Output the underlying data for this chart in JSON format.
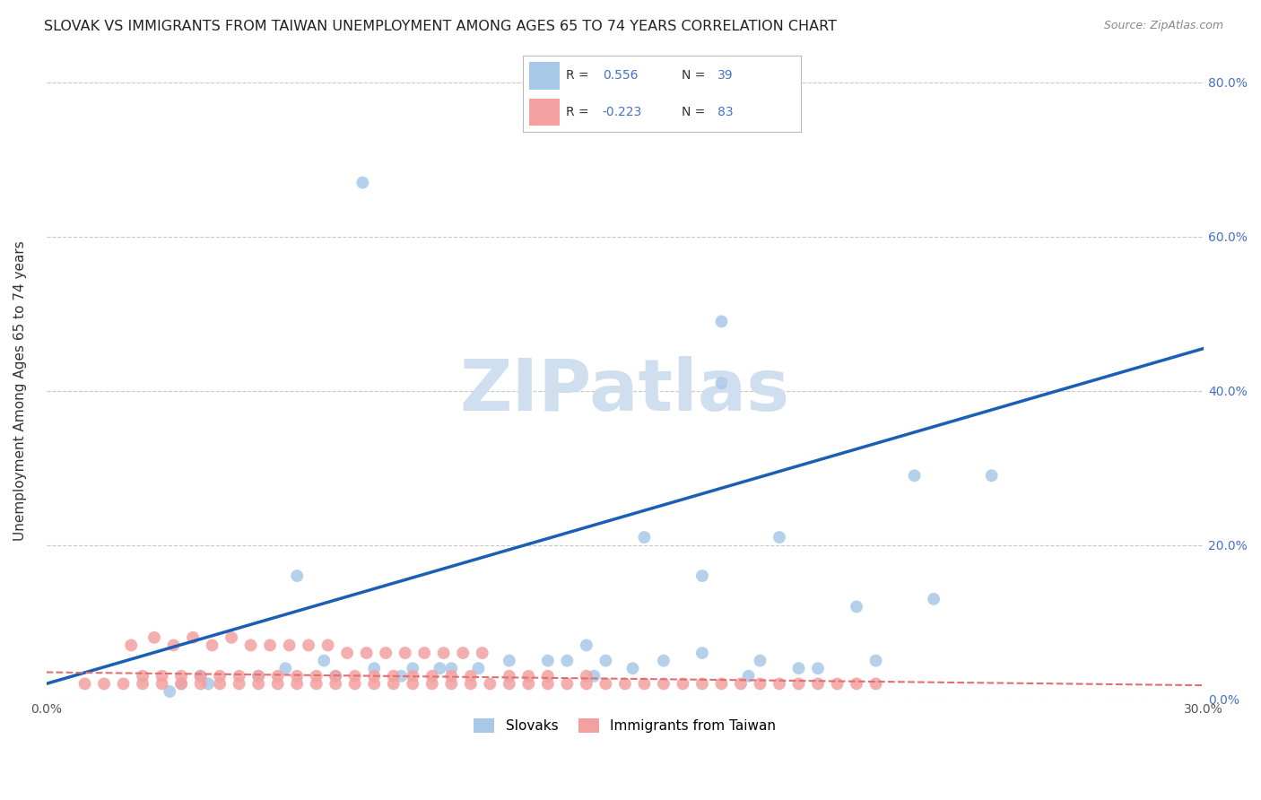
{
  "title": "SLOVAK VS IMMIGRANTS FROM TAIWAN UNEMPLOYMENT AMONG AGES 65 TO 74 YEARS CORRELATION CHART",
  "source": "Source: ZipAtlas.com",
  "ylabel": "Unemployment Among Ages 65 to 74 years",
  "xlim": [
    0.0,
    0.3
  ],
  "ylim": [
    0.0,
    0.8
  ],
  "xticks": [
    0.0,
    0.05,
    0.1,
    0.15,
    0.2,
    0.25,
    0.3
  ],
  "xticklabels": [
    "0.0%",
    "",
    "",
    "",
    "",
    "",
    "30.0%"
  ],
  "yticks": [
    0.0,
    0.2,
    0.4,
    0.6,
    0.8
  ],
  "yticklabels_right": [
    "0.0%",
    "20.0%",
    "40.0%",
    "60.0%",
    "80.0%"
  ],
  "legend_R_blue": "0.556",
  "legend_N_blue": "39",
  "legend_R_pink": "-0.223",
  "legend_N_pink": "83",
  "legend_label_blue": "Slovaks",
  "legend_label_pink": "Immigrants from Taiwan",
  "blue_color": "#a8c8e8",
  "pink_color": "#f4a0a0",
  "blue_line_color": "#1a5fb4",
  "pink_line_color": "#e07070",
  "background_color": "#ffffff",
  "grid_color": "#c8c8c8",
  "watermark_color": "#d0dff0",
  "title_fontsize": 11.5,
  "axis_label_fontsize": 11,
  "tick_fontsize": 10,
  "blue_x": [
    0.082,
    0.175,
    0.175,
    0.245,
    0.155,
    0.19,
    0.21,
    0.23,
    0.17,
    0.065,
    0.04,
    0.055,
    0.075,
    0.085,
    0.095,
    0.105,
    0.12,
    0.13,
    0.135,
    0.145,
    0.16,
    0.17,
    0.185,
    0.195,
    0.2,
    0.215,
    0.14,
    0.062,
    0.072,
    0.102,
    0.112,
    0.152,
    0.182,
    0.225,
    0.142,
    0.092,
    0.032,
    0.035,
    0.042
  ],
  "blue_y": [
    0.67,
    0.49,
    0.41,
    0.29,
    0.21,
    0.21,
    0.12,
    0.13,
    0.16,
    0.16,
    0.03,
    0.03,
    0.03,
    0.04,
    0.04,
    0.04,
    0.05,
    0.05,
    0.05,
    0.05,
    0.05,
    0.06,
    0.05,
    0.04,
    0.04,
    0.05,
    0.07,
    0.04,
    0.05,
    0.04,
    0.04,
    0.04,
    0.03,
    0.29,
    0.03,
    0.03,
    0.01,
    0.02,
    0.02
  ],
  "pink_x": [
    0.01,
    0.015,
    0.02,
    0.025,
    0.025,
    0.03,
    0.03,
    0.035,
    0.035,
    0.04,
    0.04,
    0.045,
    0.045,
    0.05,
    0.05,
    0.055,
    0.055,
    0.06,
    0.06,
    0.065,
    0.065,
    0.07,
    0.07,
    0.075,
    0.075,
    0.08,
    0.08,
    0.085,
    0.085,
    0.09,
    0.09,
    0.095,
    0.095,
    0.1,
    0.1,
    0.105,
    0.105,
    0.11,
    0.11,
    0.115,
    0.12,
    0.12,
    0.125,
    0.125,
    0.13,
    0.13,
    0.135,
    0.14,
    0.14,
    0.145,
    0.15,
    0.155,
    0.16,
    0.165,
    0.17,
    0.175,
    0.18,
    0.185,
    0.19,
    0.195,
    0.2,
    0.205,
    0.21,
    0.215,
    0.022,
    0.028,
    0.033,
    0.038,
    0.043,
    0.048,
    0.053,
    0.058,
    0.063,
    0.068,
    0.073,
    0.078,
    0.083,
    0.088,
    0.093,
    0.098,
    0.103,
    0.108,
    0.113
  ],
  "pink_y": [
    0.02,
    0.02,
    0.02,
    0.02,
    0.03,
    0.02,
    0.03,
    0.02,
    0.03,
    0.02,
    0.03,
    0.02,
    0.03,
    0.02,
    0.03,
    0.02,
    0.03,
    0.02,
    0.03,
    0.02,
    0.03,
    0.02,
    0.03,
    0.02,
    0.03,
    0.02,
    0.03,
    0.02,
    0.03,
    0.02,
    0.03,
    0.02,
    0.03,
    0.02,
    0.03,
    0.02,
    0.03,
    0.02,
    0.03,
    0.02,
    0.02,
    0.03,
    0.02,
    0.03,
    0.02,
    0.03,
    0.02,
    0.02,
    0.03,
    0.02,
    0.02,
    0.02,
    0.02,
    0.02,
    0.02,
    0.02,
    0.02,
    0.02,
    0.02,
    0.02,
    0.02,
    0.02,
    0.02,
    0.02,
    0.07,
    0.08,
    0.07,
    0.08,
    0.07,
    0.08,
    0.07,
    0.07,
    0.07,
    0.07,
    0.07,
    0.06,
    0.06,
    0.06,
    0.06,
    0.06,
    0.06,
    0.06,
    0.06
  ],
  "blue_line_x0": 0.0,
  "blue_line_y0": 0.02,
  "blue_line_x1": 0.3,
  "blue_line_y1": 0.455,
  "pink_line_x0": 0.0,
  "pink_line_y0": 0.035,
  "pink_line_x1": 0.3,
  "pink_line_y1": 0.018
}
